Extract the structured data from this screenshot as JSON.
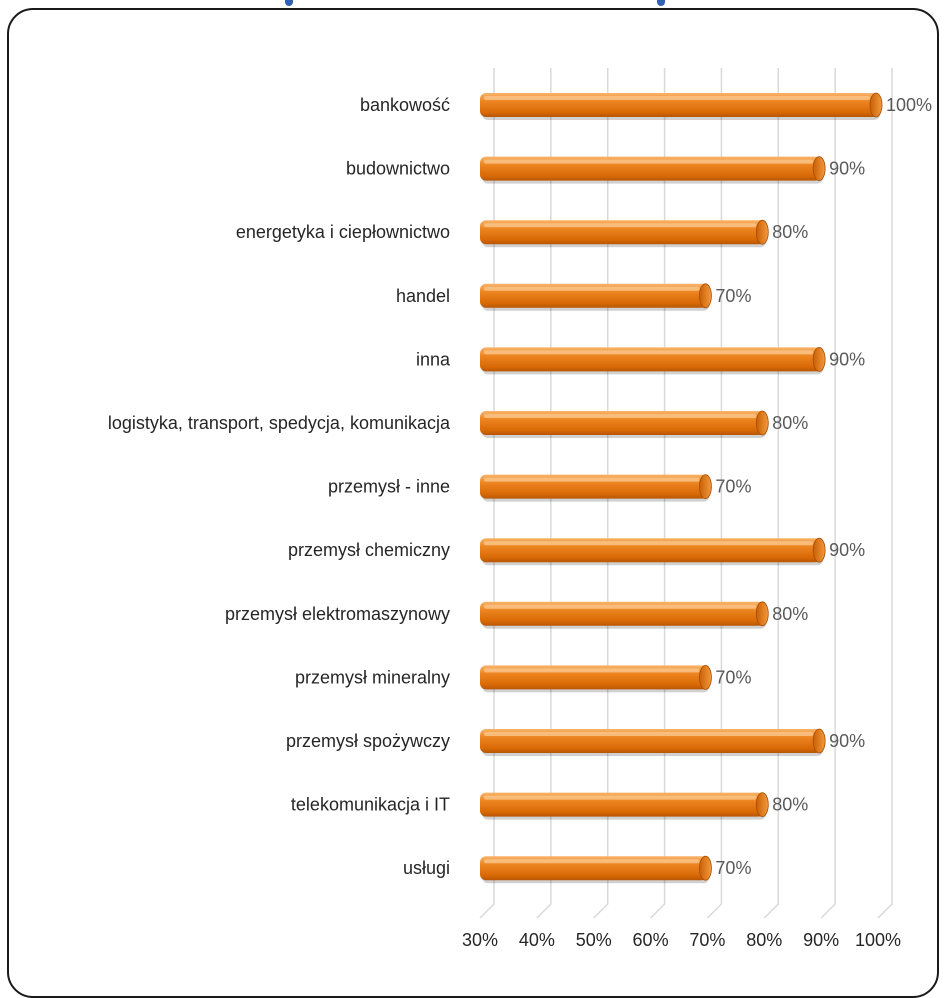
{
  "chart_data": {
    "type": "bar",
    "orientation": "horizontal",
    "categories": [
      "bankowość",
      "budownictwo",
      "energetyka i ciepłownictwo",
      "handel",
      "inna",
      "logistyka, transport, spedycja, komunikacja",
      "przemysł - inne",
      "przemysł chemiczny",
      "przemysł elektromaszynowy",
      "przemysł mineralny",
      "przemysł spożywczy",
      "telekomunikacja i IT",
      "usługi"
    ],
    "values": [
      100,
      90,
      80,
      70,
      90,
      80,
      70,
      90,
      80,
      70,
      90,
      80,
      70
    ],
    "value_labels": [
      "100%",
      "90%",
      "80%",
      "70%",
      "90%",
      "80%",
      "70%",
      "90%",
      "80%",
      "70%",
      "90%",
      "80%",
      "70%"
    ],
    "xlim": [
      30,
      100
    ],
    "x_ticks": [
      30,
      40,
      50,
      60,
      70,
      80,
      90,
      100
    ],
    "x_tick_labels": [
      "30%",
      "40%",
      "50%",
      "60%",
      "70%",
      "80%",
      "90%",
      "100%"
    ],
    "grid": true,
    "bar_color": "#e8740c",
    "bar_highlight": "#f7a655",
    "bar_shadow": "#a84e05",
    "gridline_color": "#d9d9d9"
  }
}
